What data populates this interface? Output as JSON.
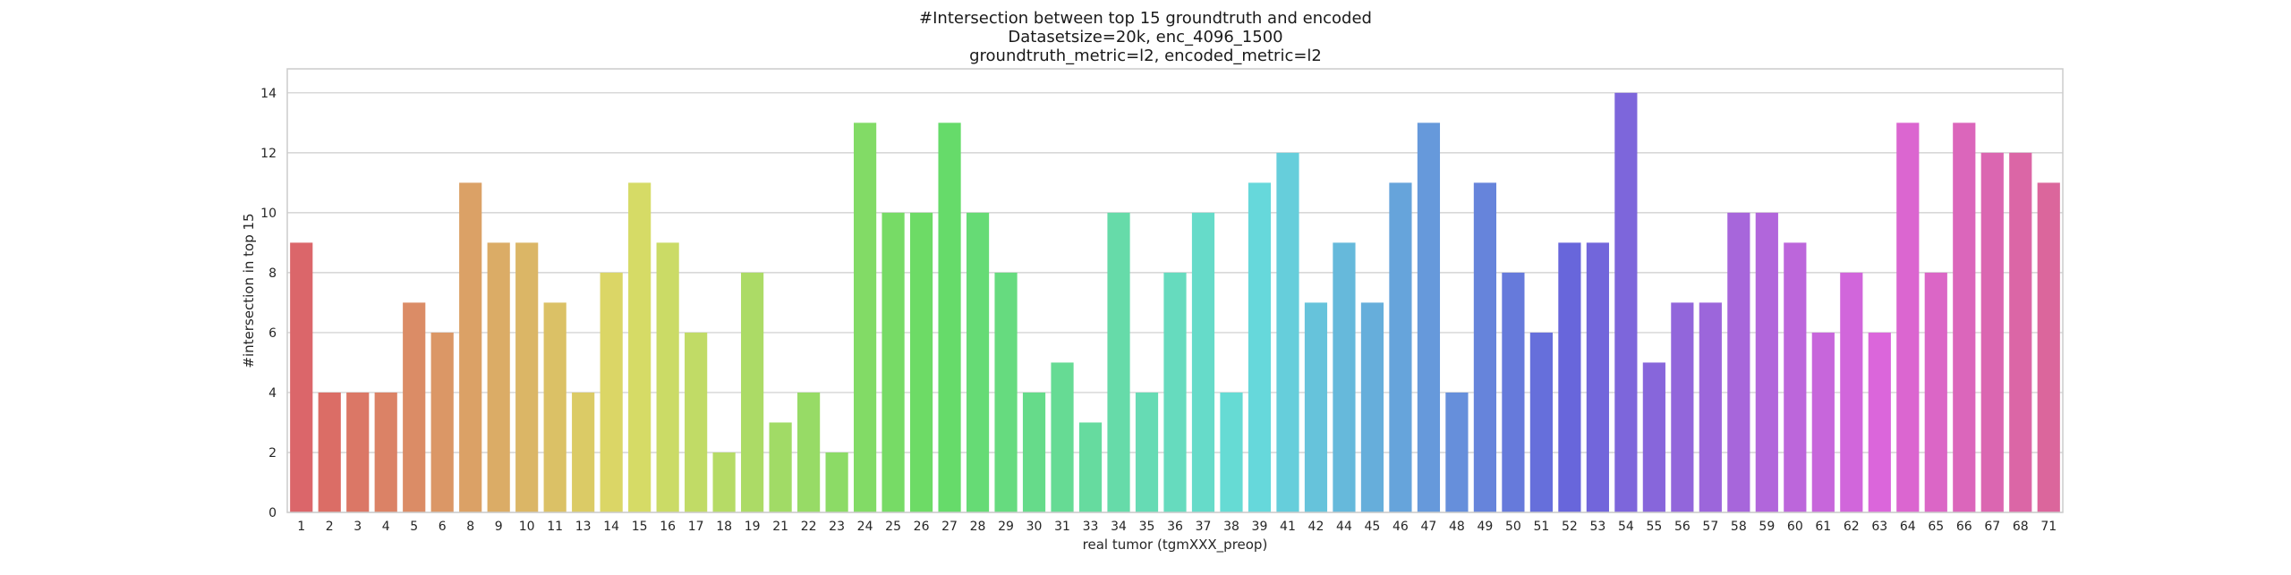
{
  "chart_data": {
    "type": "bar",
    "title_lines": [
      "#Intersection between top 15 groundtruth and encoded",
      "Datasetsize=20k, enc_4096_1500",
      "groundtruth_metric=l2, encoded_metric=l2"
    ],
    "xlabel": "real tumor (tgmXXX_preop)",
    "ylabel": "#intersection in top 15",
    "ylim": [
      0,
      14.8
    ],
    "yticks": [
      "0",
      "2",
      "4",
      "6",
      "8",
      "10",
      "12",
      "14"
    ],
    "grid": true,
    "categories": [
      "1",
      "2",
      "3",
      "4",
      "5",
      "6",
      "8",
      "9",
      "10",
      "11",
      "13",
      "14",
      "15",
      "16",
      "17",
      "18",
      "19",
      "21",
      "22",
      "23",
      "24",
      "25",
      "26",
      "27",
      "28",
      "29",
      "30",
      "31",
      "33",
      "34",
      "35",
      "36",
      "37",
      "38",
      "39",
      "41",
      "42",
      "44",
      "45",
      "46",
      "47",
      "48",
      "49",
      "50",
      "51",
      "52",
      "53",
      "54",
      "55",
      "56",
      "57",
      "58",
      "59",
      "60",
      "61",
      "62",
      "63",
      "64",
      "65",
      "66",
      "67",
      "68",
      "71"
    ],
    "values": [
      9,
      4,
      4,
      4,
      7,
      6,
      11,
      9,
      9,
      7,
      4,
      8,
      11,
      9,
      6,
      2,
      8,
      3,
      4,
      2,
      13,
      10,
      10,
      13,
      10,
      8,
      4,
      5,
      3,
      10,
      4,
      8,
      10,
      4,
      11,
      12,
      7,
      9,
      7,
      11,
      13,
      4,
      11,
      8,
      6,
      9,
      9,
      14,
      5,
      7,
      7,
      10,
      10,
      9,
      6,
      8,
      6,
      13,
      8,
      13,
      12,
      12,
      11
    ]
  }
}
